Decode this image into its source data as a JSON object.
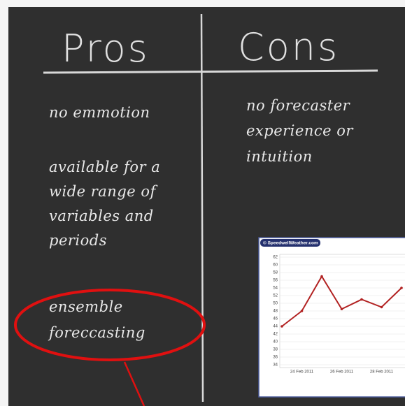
{
  "board": {
    "pros_heading": "Pros",
    "cons_heading": "Cons",
    "pros": [
      [
        "no emmotion"
      ],
      [
        "available for a",
        "wide range of",
        "variables and",
        "periods"
      ],
      [
        "ensemble",
        "foreccasting"
      ]
    ],
    "cons": [
      [
        "no forecaster",
        "experience or",
        "intuition"
      ]
    ]
  },
  "inset_chart": {
    "type": "line",
    "title": "© SpeedwellWeather.com",
    "categories": [
      null,
      "24 Feb 2011",
      null,
      "26 Feb 2011",
      null,
      "28 Feb 2011",
      null
    ],
    "values": [
      44,
      48,
      57,
      48.5,
      51,
      49,
      54
    ],
    "color": "#b22222",
    "ylim": [
      34,
      62
    ],
    "yticks": [
      34,
      36,
      38,
      40,
      42,
      44,
      46,
      48,
      50,
      52,
      54,
      56,
      58,
      60,
      62
    ],
    "grid": true
  }
}
